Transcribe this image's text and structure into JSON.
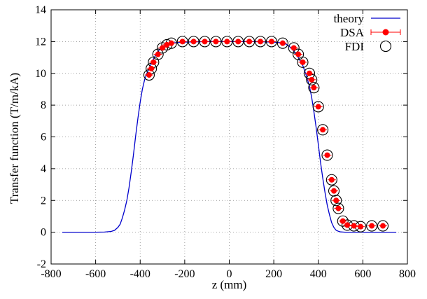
{
  "chart_data": {
    "type": "scatter",
    "title": "",
    "xlabel": "z (mm)",
    "ylabel": "Transfer function (T/m/kA)",
    "xlim": [
      -800,
      800
    ],
    "ylim": [
      -2,
      14
    ],
    "x_ticks": [
      -800,
      -600,
      -400,
      -200,
      0,
      200,
      400,
      600,
      800
    ],
    "y_ticks": [
      -2,
      0,
      2,
      4,
      6,
      8,
      10,
      12,
      14
    ],
    "grid": true,
    "legend_position": "top-right",
    "colors": {
      "theory": "#0000cc",
      "dsa": "#ff0000",
      "fdi": "#000000"
    },
    "series": [
      {
        "name": "theory",
        "style": "line",
        "x": [
          -750,
          -650,
          -600,
          -560,
          -530,
          -515,
          -500,
          -490,
          -480,
          -470,
          -460,
          -450,
          -440,
          -430,
          -420,
          -410,
          -400,
          -390,
          -380,
          -370,
          -360,
          -350,
          -340,
          -325,
          -310,
          -290,
          -270,
          -250,
          -200,
          -100,
          0,
          100,
          200,
          230,
          250,
          270,
          290,
          310,
          330,
          345,
          360,
          370,
          380,
          390,
          400,
          410,
          420,
          430,
          440,
          450,
          460,
          470,
          480,
          490,
          500,
          510,
          520,
          540,
          560,
          600,
          650,
          750
        ],
        "y": [
          0,
          0,
          0,
          0.01,
          0.05,
          0.12,
          0.3,
          0.5,
          0.9,
          1.4,
          2.0,
          2.8,
          3.8,
          4.9,
          6.1,
          7.2,
          8.2,
          9.0,
          9.6,
          10.0,
          10.3,
          10.6,
          10.9,
          11.3,
          11.55,
          11.75,
          11.85,
          11.92,
          11.97,
          12.0,
          12.0,
          12.0,
          11.97,
          11.93,
          11.88,
          11.7,
          11.4,
          11.0,
          10.5,
          9.9,
          9.2,
          8.5,
          7.6,
          6.6,
          5.5,
          4.4,
          3.4,
          2.5,
          1.7,
          1.1,
          0.6,
          0.3,
          0.12,
          0.06,
          0.02,
          0.01,
          0,
          0,
          0,
          0,
          0,
          0
        ]
      },
      {
        "name": "DSA",
        "style": "marker-filled-circle-with-errorbars",
        "x": [
          -360,
          -350,
          -340,
          -320,
          -300,
          -280,
          -260,
          -210,
          -160,
          -110,
          -60,
          -10,
          40,
          90,
          140,
          190,
          240,
          290,
          310,
          330,
          360,
          370,
          380,
          400,
          420,
          440,
          460,
          470,
          480,
          490,
          510,
          530,
          560,
          590,
          640,
          690
        ],
        "y": [
          9.9,
          10.3,
          10.7,
          11.2,
          11.6,
          11.8,
          11.9,
          12.0,
          12.0,
          12.0,
          12.0,
          12.0,
          12.0,
          12.0,
          12.0,
          12.0,
          11.9,
          11.6,
          11.2,
          10.7,
          10.0,
          9.6,
          9.1,
          7.9,
          6.45,
          4.85,
          3.3,
          2.6,
          2.0,
          1.5,
          0.7,
          0.45,
          0.4,
          0.35,
          0.4,
          0.4
        ]
      },
      {
        "name": "FDI",
        "style": "marker-open-circle",
        "x": [
          -360,
          -350,
          -340,
          -320,
          -300,
          -280,
          -260,
          -210,
          -160,
          -110,
          -60,
          -10,
          40,
          90,
          140,
          190,
          240,
          290,
          310,
          330,
          360,
          370,
          380,
          400,
          420,
          440,
          460,
          470,
          480,
          490,
          510,
          530,
          560,
          590,
          640,
          690
        ],
        "y": [
          9.9,
          10.3,
          10.7,
          11.2,
          11.6,
          11.8,
          11.9,
          12.0,
          12.0,
          12.0,
          12.0,
          12.0,
          12.0,
          12.0,
          12.0,
          12.0,
          11.9,
          11.6,
          11.2,
          10.7,
          10.0,
          9.6,
          9.1,
          7.9,
          6.45,
          4.85,
          3.3,
          2.6,
          2.0,
          1.5,
          0.7,
          0.45,
          0.4,
          0.35,
          0.4,
          0.4
        ]
      }
    ]
  }
}
